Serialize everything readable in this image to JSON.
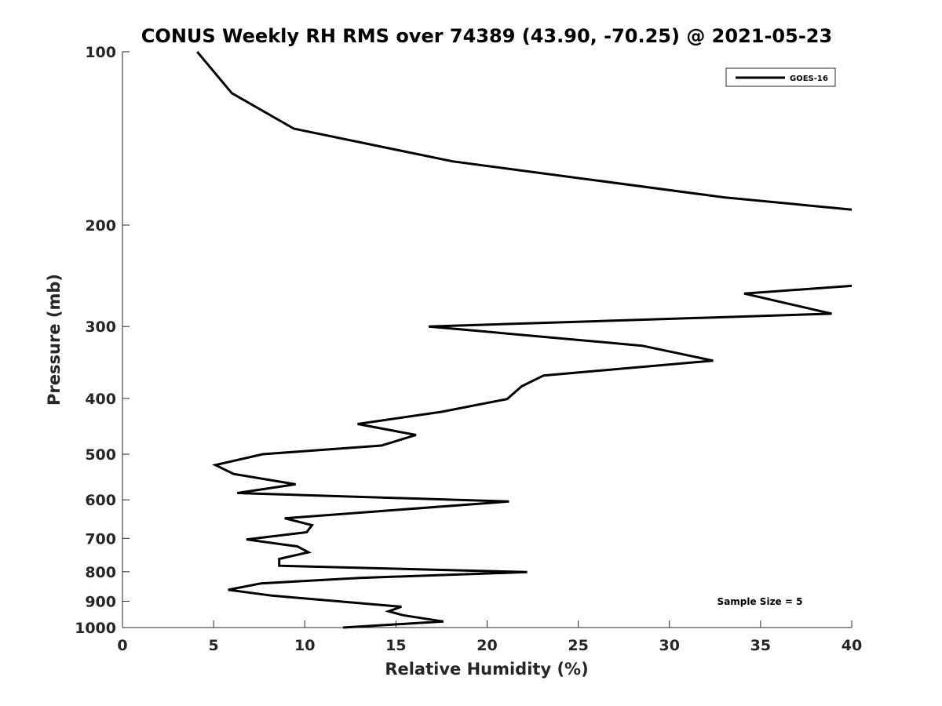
{
  "chart_data": {
    "type": "line",
    "title": "CONUS Weekly RH RMS over 74389 (43.90, -70.25) @ 2021-05-23",
    "xlabel": "Relative Humidity (%)",
    "ylabel": "Pressure (mb)",
    "xlim": [
      0,
      40
    ],
    "ylim": [
      100,
      1000
    ],
    "y_scale": "log",
    "y_reversed": true,
    "x_ticks": [
      "0",
      "5",
      "10",
      "15",
      "20",
      "25",
      "30",
      "35",
      "40"
    ],
    "y_ticks": [
      "100",
      "200",
      "300",
      "400",
      "500",
      "600",
      "700",
      "800",
      "900",
      "1000"
    ],
    "grid": false,
    "legend": {
      "position": "top-right",
      "entries": [
        "GOES-16"
      ]
    },
    "annotation": "Sample Size = 5",
    "series": [
      {
        "name": "GOES-16",
        "color": "#000000",
        "points": [
          [
            4.1,
            100
          ],
          [
            6.0,
            118
          ],
          [
            9.4,
            136
          ],
          [
            18.1,
            155
          ],
          [
            33.0,
            179
          ],
          [
            40.0,
            188
          ],
          [
            null,
            null
          ],
          [
            40.0,
            255
          ],
          [
            34.1,
            263
          ],
          [
            38.9,
            285
          ],
          [
            16.8,
            300
          ],
          [
            28.5,
            324
          ],
          [
            32.4,
            344
          ],
          [
            23.1,
            365
          ],
          [
            21.9,
            381
          ],
          [
            21.1,
            401
          ],
          [
            17.5,
            422
          ],
          [
            12.9,
            443
          ],
          [
            16.1,
            463
          ],
          [
            14.2,
            483
          ],
          [
            7.7,
            500
          ],
          [
            5.1,
            522
          ],
          [
            6.1,
            541
          ],
          [
            9.5,
            564
          ],
          [
            6.3,
            584
          ],
          [
            21.2,
            604
          ],
          [
            8.9,
            646
          ],
          [
            10.4,
            664
          ],
          [
            10.1,
            683
          ],
          [
            6.8,
            703
          ],
          [
            9.6,
            723
          ],
          [
            10.2,
            740
          ],
          [
            8.6,
            760
          ],
          [
            8.6,
            781
          ],
          [
            22.2,
            801
          ],
          [
            13.0,
            820
          ],
          [
            7.6,
            838
          ],
          [
            5.8,
            860
          ],
          [
            8.2,
            880
          ],
          [
            15.3,
            920
          ],
          [
            14.6,
            937
          ],
          [
            15.4,
            952
          ],
          [
            17.6,
            976
          ],
          [
            12.1,
            1000
          ]
        ]
      }
    ]
  }
}
